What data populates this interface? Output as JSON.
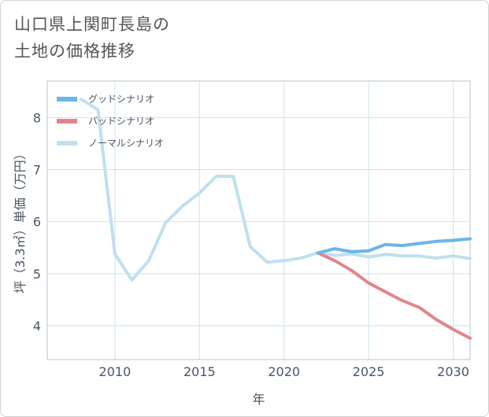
{
  "title_lines": [
    "山口県上関町長島の",
    "土地の価格推移"
  ],
  "chart_data": {
    "type": "line",
    "xlabel": "年",
    "ylabel": "坪（3.3㎡）単価（万円）",
    "xlim": [
      2006,
      2031
    ],
    "ylim": [
      3.35,
      8.7
    ],
    "x_ticks": [
      2010,
      2015,
      2020,
      2025,
      2030
    ],
    "y_ticks": [
      4,
      5,
      6,
      7,
      8
    ],
    "grid": true,
    "legend_position": "top-left",
    "series": [
      {
        "name": "グッドシナリオ",
        "color": "#6ab5ea",
        "x": [
          2022,
          2023,
          2024,
          2025,
          2026,
          2027,
          2028,
          2029,
          2030,
          2031
        ],
        "values": [
          5.4,
          5.48,
          5.42,
          5.44,
          5.56,
          5.54,
          5.58,
          5.62,
          5.64,
          5.67
        ]
      },
      {
        "name": "バッドシナリオ",
        "color": "#e0858d",
        "x": [
          2022,
          2023,
          2024,
          2025,
          2026,
          2027,
          2028,
          2029,
          2030,
          2031
        ],
        "values": [
          5.4,
          5.25,
          5.06,
          4.82,
          4.65,
          4.48,
          4.35,
          4.12,
          3.93,
          3.76
        ]
      },
      {
        "name": "ノーマルシナリオ",
        "color": "#bfe0ee",
        "x": [
          2008,
          2009,
          2010,
          2011,
          2012,
          2013,
          2014,
          2015,
          2016,
          2017,
          2018,
          2019,
          2020,
          2021,
          2022,
          2023,
          2024,
          2025,
          2026,
          2027,
          2028,
          2029,
          2030,
          2031
        ],
        "values": [
          8.35,
          8.15,
          5.38,
          4.88,
          5.25,
          5.98,
          6.3,
          6.55,
          6.87,
          6.87,
          5.52,
          5.22,
          5.25,
          5.3,
          5.4,
          5.35,
          5.38,
          5.32,
          5.37,
          5.34,
          5.34,
          5.3,
          5.34,
          5.29
        ]
      }
    ]
  }
}
